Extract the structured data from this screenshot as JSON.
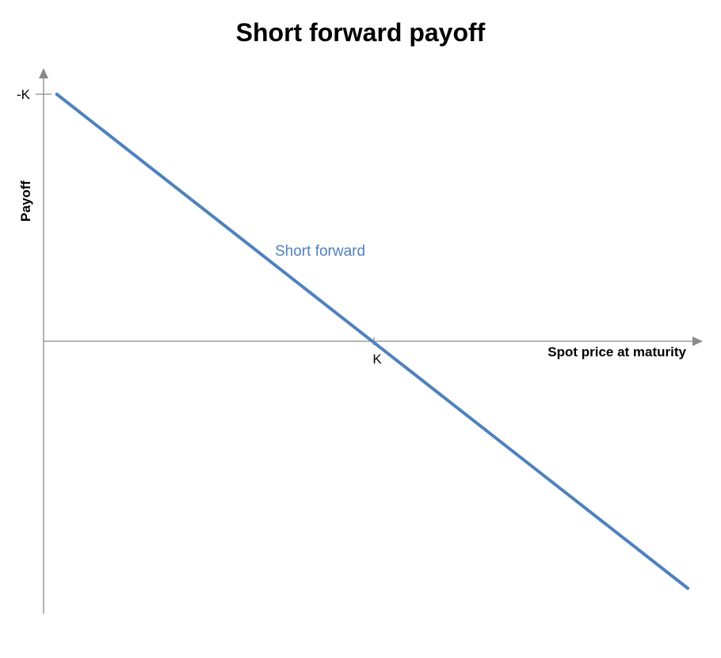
{
  "chart_data": {
    "type": "line",
    "title": "Short forward payoff",
    "xlabel": "Spot price at maturity",
    "ylabel": "Payoff",
    "x_ticks": [
      {
        "value": 1,
        "label": "K"
      }
    ],
    "y_ticks": [
      {
        "value": 1,
        "label": "-K"
      }
    ],
    "xlim": [
      0,
      2
    ],
    "ylim": [
      -1,
      1
    ],
    "grid": false,
    "legend": false,
    "series": [
      {
        "name": "Short forward",
        "color": "#4F81BD",
        "points": [
          {
            "x": 0.04,
            "y": 1.0
          },
          {
            "x": 1.95,
            "y": -1.0
          }
        ]
      }
    ],
    "annotations": [
      {
        "text": "Short forward",
        "color": "#4F81BD"
      }
    ]
  }
}
